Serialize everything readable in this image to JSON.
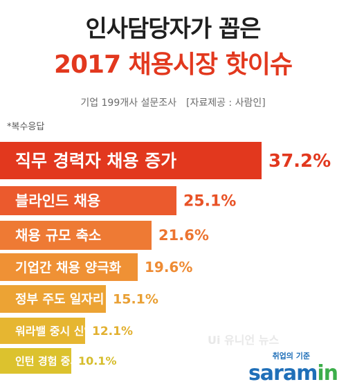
{
  "header": {
    "title_line1": "인사담당자가 꼽은",
    "title_line2": "2017 채용시장 핫이슈",
    "subtitle": "기업 199개사 설문조사",
    "source": "[자료제공 : 사람인]",
    "note": "*복수응답"
  },
  "watermark": "Ui 유니언 뉴스",
  "logo": {
    "tagline": "취업의 기준",
    "brand": "saram",
    "brand_suffix": "in"
  },
  "chart_data": {
    "type": "bar",
    "orientation": "horizontal",
    "categories": [
      "직무 경력자 채용 증가",
      "블라인드 채용",
      "채용 규모 축소",
      "기업간 채용 양극화",
      "정부 주도 일자리 정책",
      "워라밸 중시 신입 증가",
      "인턴 경험 중시"
    ],
    "values": [
      37.2,
      25.1,
      21.6,
      19.6,
      15.1,
      12.1,
      10.1
    ],
    "value_labels": [
      "37.2%",
      "25.1%",
      "21.6%",
      "19.6%",
      "15.1%",
      "12.1%",
      "10.1%"
    ],
    "unit": "%",
    "colors": [
      "#e2381e",
      "#eb5a2d",
      "#ee7a34",
      "#ef9135",
      "#eca334",
      "#e6b631",
      "#dcc22e"
    ],
    "value_colors": [
      "#e2381e",
      "#e85226",
      "#ec7430",
      "#ee8b33",
      "#e99f33",
      "#e2b030",
      "#d6bd2d"
    ],
    "grid": false,
    "legend": "none"
  }
}
